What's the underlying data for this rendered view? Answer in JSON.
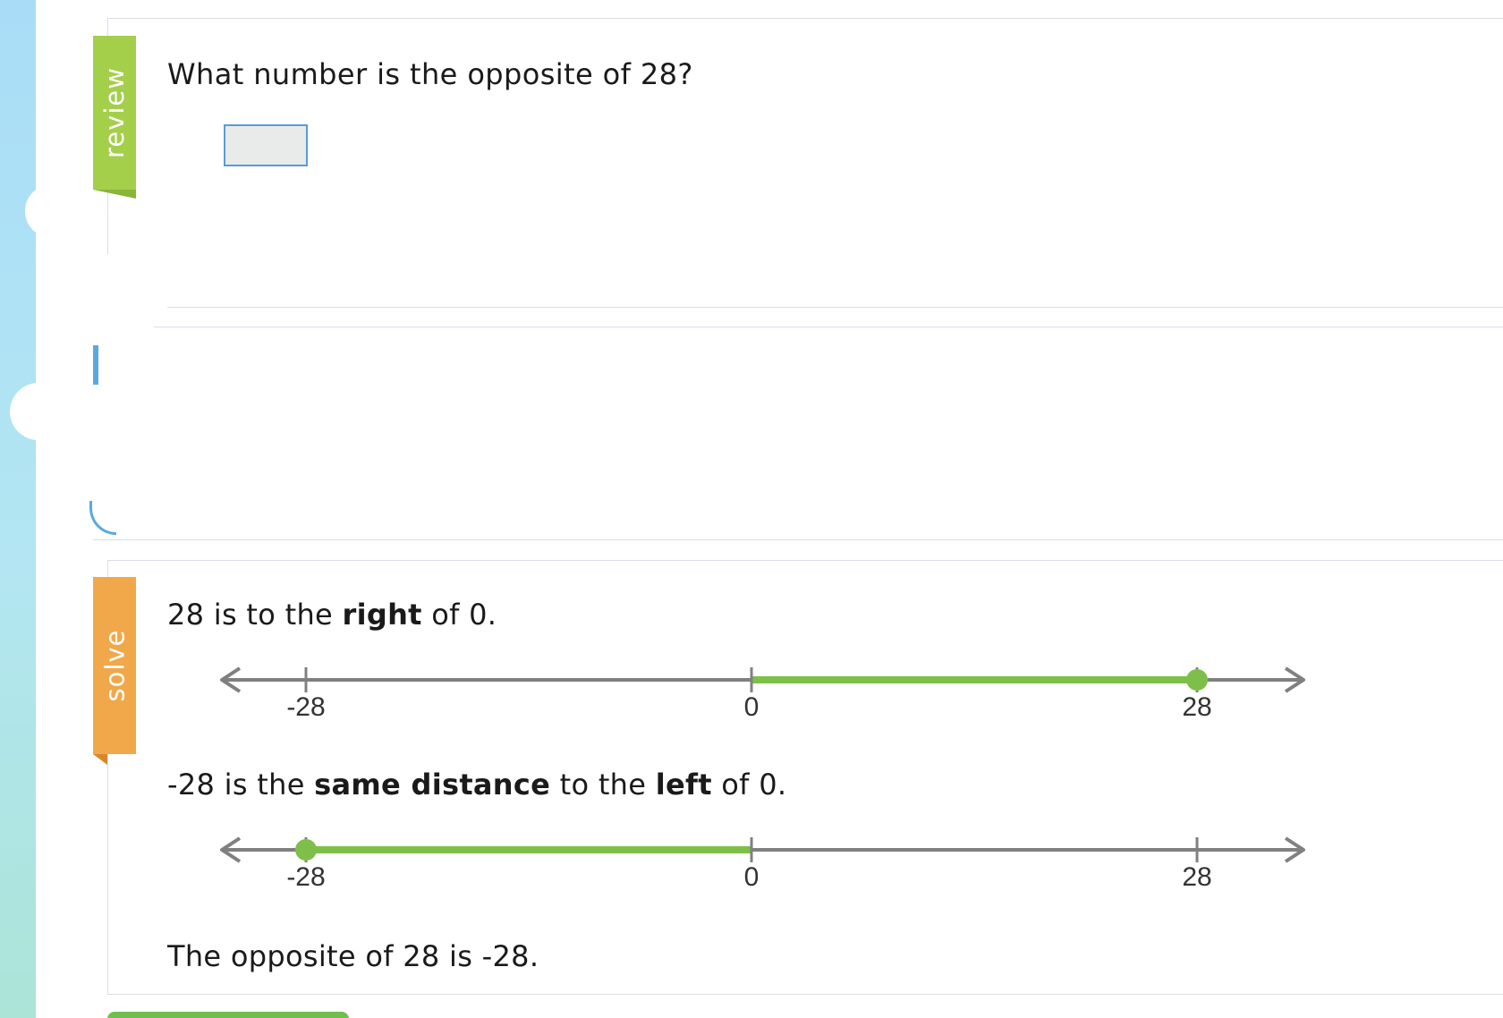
{
  "colors": {
    "review_ribbon": "#a4cf4b",
    "solve_ribbon": "#f1a84a",
    "highlight": "#7dbf48",
    "axis": "#808080",
    "input_border": "#5b9bd5"
  },
  "review": {
    "ribbon_label": "review",
    "question": "What number is the opposite of 28?",
    "answer_value": ""
  },
  "solve": {
    "ribbon_label": "solve",
    "line1": {
      "prefix": "28 is to the ",
      "bold": "right",
      "suffix": " of 0."
    },
    "number_line_1": {
      "ticks": [
        "-28",
        "0",
        "28"
      ],
      "highlight_from": 0,
      "highlight_to": 28,
      "point": 28
    },
    "line2": {
      "prefix": "-28 is the ",
      "bold1": "same distance",
      "middle": " to the ",
      "bold2": "left",
      "suffix": " of 0."
    },
    "number_line_2": {
      "ticks": [
        "-28",
        "0",
        "28"
      ],
      "highlight_from": -28,
      "highlight_to": 0,
      "point": -28
    },
    "conclusion": "The opposite of 28 is -28."
  }
}
